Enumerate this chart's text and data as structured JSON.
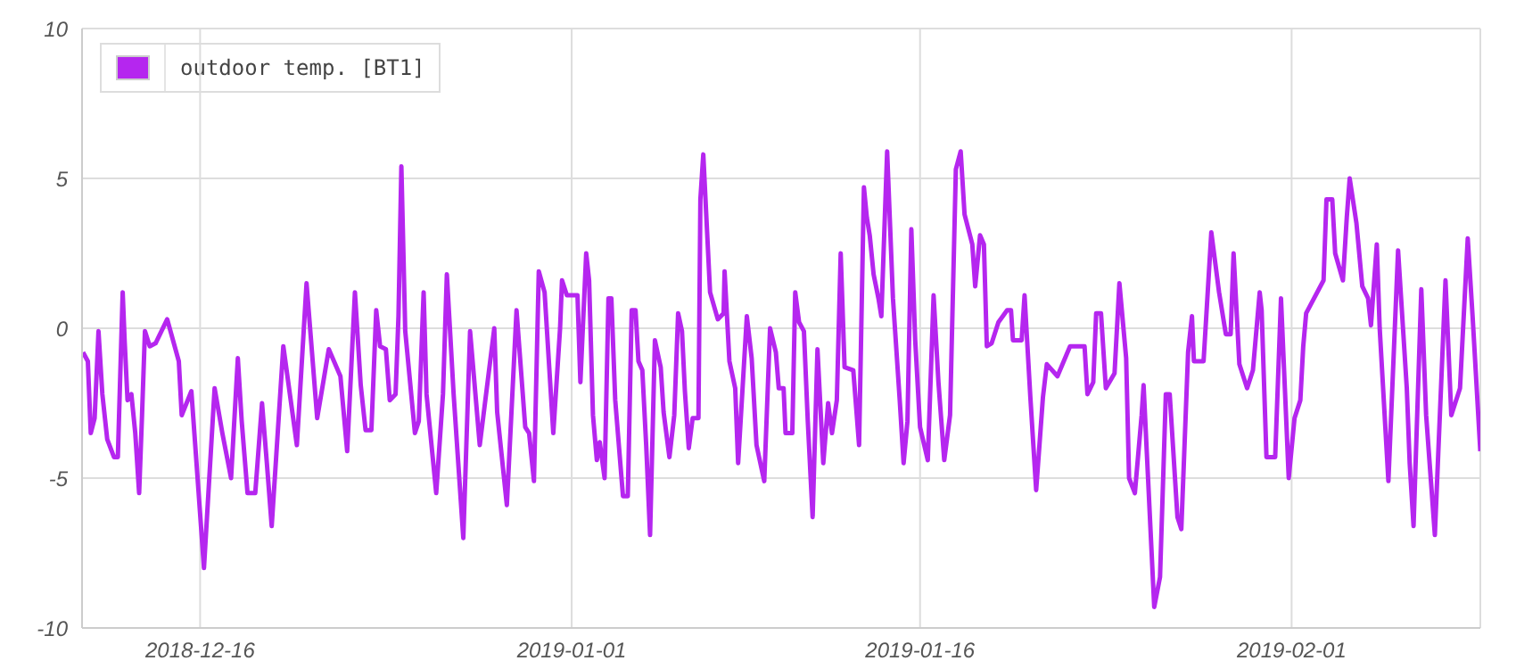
{
  "chart_data": {
    "type": "line",
    "x": [
      "2018-12-10T23:00",
      "2018-12-11T04:00",
      "2018-12-11T07:00",
      "2018-12-11T11:00",
      "2018-12-11T15:00",
      "2018-12-11T19:00",
      "2018-12-12T00:00",
      "2018-12-12T07:00",
      "2018-12-12T11:00",
      "2018-12-12T16:00",
      "2018-12-12T18:00",
      "2018-12-12T21:00",
      "2018-12-13T01:00",
      "2018-12-13T05:00",
      "2018-12-13T09:00",
      "2018-12-13T12:00",
      "2018-12-13T15:00",
      "2018-12-13T20:00",
      "2018-12-14T02:00",
      "2018-12-14T14:00",
      "2018-12-15T02:00",
      "2018-12-15T05:00",
      "2018-12-15T15:00",
      "2018-12-16T04:00",
      "2018-12-16T15:00",
      "2018-12-16T23:00",
      "2018-12-17T08:00",
      "2018-12-17T15:00",
      "2018-12-17T19:00",
      "2018-12-18T01:00",
      "2018-12-18T09:00",
      "2018-12-18T16:00",
      "2018-12-18T21:00",
      "2018-12-19T02:00",
      "2018-12-19T14:00",
      "2018-12-20T04:00",
      "2018-12-20T14:00",
      "2018-12-21T01:00",
      "2018-12-21T13:00",
      "2018-12-22T01:00",
      "2018-12-22T08:00",
      "2018-12-22T16:00",
      "2018-12-22T22:00",
      "2018-12-23T03:00",
      "2018-12-23T09:00",
      "2018-12-23T14:00",
      "2018-12-23T18:00",
      "2018-12-24T00:00",
      "2018-12-24T04:00",
      "2018-12-24T10:00",
      "2018-12-24T13:00",
      "2018-12-24T16:00",
      "2018-12-24T20:00",
      "2018-12-25T06:00",
      "2018-12-25T10:00",
      "2018-12-25T15:00",
      "2018-12-25T18:00",
      "2018-12-26T04:00",
      "2018-12-26T11:00",
      "2018-12-26T15:00",
      "2018-12-26T22:00",
      "2018-12-27T08:00",
      "2018-12-27T15:00",
      "2018-12-28T01:00",
      "2018-12-28T16:00",
      "2018-12-28T19:00",
      "2018-12-29T05:00",
      "2018-12-29T15:00",
      "2018-12-30T00:00",
      "2018-12-30T04:00",
      "2018-12-30T09:00",
      "2018-12-30T14:00",
      "2018-12-30T20:00",
      "2018-12-31T05:00",
      "2018-12-31T12:00",
      "2018-12-31T14:00",
      "2018-12-31T19:00",
      "2019-01-01T06:00",
      "2019-01-01T09:00",
      "2019-01-01T15:00",
      "2019-01-01T18:00",
      "2019-01-01T22:00",
      "2019-01-02T02:00",
      "2019-01-02T05:00",
      "2019-01-02T10:00",
      "2019-01-02T14:00",
      "2019-01-02T17:00",
      "2019-01-02T21:00",
      "2019-01-03T01:00",
      "2019-01-03T05:00",
      "2019-01-03T10:00",
      "2019-01-03T14:00",
      "2019-01-03T18:00",
      "2019-01-03T21:00",
      "2019-01-04T01:00",
      "2019-01-04T05:00",
      "2019-01-04T09:00",
      "2019-01-04T14:00",
      "2019-01-04T20:00",
      "2019-01-04T23:00",
      "2019-01-05T05:00",
      "2019-01-05T10:00",
      "2019-01-05T14:00",
      "2019-01-05T18:00",
      "2019-01-05T21:00",
      "2019-01-06T01:00",
      "2019-01-06T05:00",
      "2019-01-06T11:00",
      "2019-01-06T13:00",
      "2019-01-06T16:00",
      "2019-01-06T23:00",
      "2019-01-07T07:00",
      "2019-01-07T13:00",
      "2019-01-07T14:00",
      "2019-01-07T19:00",
      "2019-01-08T01:00",
      "2019-01-08T04:00",
      "2019-01-08T13:00",
      "2019-01-08T18:00",
      "2019-01-08T23:00",
      "2019-01-09T07:00",
      "2019-01-09T13:00",
      "2019-01-09T19:00",
      "2019-01-09T22:00",
      "2019-01-10T03:00",
      "2019-01-10T05:00",
      "2019-01-10T12:00",
      "2019-01-10T15:00",
      "2019-01-10T19:00",
      "2019-01-11T00:00",
      "2019-01-11T04:00",
      "2019-01-11T09:00",
      "2019-01-11T14:00",
      "2019-01-11T20:00",
      "2019-01-12T01:00",
      "2019-01-12T05:00",
      "2019-01-12T10:00",
      "2019-01-12T14:00",
      "2019-01-12T18:00",
      "2019-01-13T03:00",
      "2019-01-13T09:00",
      "2019-01-13T14:00",
      "2019-01-13T17:00",
      "2019-01-13T20:00",
      "2019-01-14T00:00",
      "2019-01-14T05:00",
      "2019-01-14T08:00",
      "2019-01-14T14:00",
      "2019-01-14T20:00",
      "2019-01-15T03:00",
      "2019-01-15T07:00",
      "2019-01-15T11:00",
      "2019-01-15T15:00",
      "2019-01-15T19:00",
      "2019-01-16T00:00",
      "2019-01-16T08:00",
      "2019-01-16T14:00",
      "2019-01-16T19:00",
      "2019-01-17T01:00",
      "2019-01-17T07:00",
      "2019-01-17T13:00",
      "2019-01-17T18:00",
      "2019-01-17T22:00",
      "2019-01-18T06:00",
      "2019-01-18T09:00",
      "2019-01-18T14:00",
      "2019-01-18T18:00",
      "2019-01-18T21:00",
      "2019-01-19T02:00",
      "2019-01-19T09:00",
      "2019-01-19T18:00",
      "2019-01-19T22:00",
      "2019-01-20T00:00",
      "2019-01-20T09:00",
      "2019-01-20T12:00",
      "2019-01-20T18:00",
      "2019-01-21T00:00",
      "2019-01-21T07:00",
      "2019-01-21T11:00",
      "2019-01-21T22:00",
      "2019-01-22T11:00",
      "2019-01-23T02:00",
      "2019-01-23T05:00",
      "2019-01-23T11:00",
      "2019-01-23T14:00",
      "2019-01-23T19:00",
      "2019-01-24T00:00",
      "2019-01-24T09:00",
      "2019-01-24T14:00",
      "2019-01-24T21:00",
      "2019-01-25T00:00",
      "2019-01-25T06:00",
      "2019-01-25T13:00",
      "2019-01-25T15:00",
      "2019-01-26T02:00",
      "2019-01-26T08:00",
      "2019-01-26T14:00",
      "2019-01-26T18:00",
      "2019-01-27T02:00",
      "2019-01-27T06:00",
      "2019-01-27T13:00",
      "2019-01-27T17:00",
      "2019-01-27T19:00",
      "2019-01-28T05:00",
      "2019-01-28T13:00",
      "2019-01-28T21:00",
      "2019-01-29T04:00",
      "2019-01-29T09:00",
      "2019-01-29T12:00",
      "2019-01-29T18:00",
      "2019-01-30T02:00",
      "2019-01-30T08:00",
      "2019-01-30T15:00",
      "2019-01-30T17:00",
      "2019-01-30T22:00",
      "2019-01-31T07:00",
      "2019-01-31T13:00",
      "2019-01-31T17:00",
      "2019-01-31T21:00",
      "2019-02-01T03:00",
      "2019-02-01T09:00",
      "2019-02-01T12:00",
      "2019-02-01T15:00",
      "2019-02-02T09:00",
      "2019-02-02T12:00",
      "2019-02-02T18:00",
      "2019-02-02T21:00",
      "2019-02-03T05:00",
      "2019-02-03T09:00",
      "2019-02-03T12:00",
      "2019-02-03T19:00",
      "2019-02-04T01:00",
      "2019-02-04T07:00",
      "2019-02-04T10:00",
      "2019-02-04T16:00",
      "2019-02-04T19:00",
      "2019-02-05T04:00",
      "2019-02-05T14:00",
      "2019-02-05T23:00",
      "2019-02-06T02:00",
      "2019-02-06T06:00",
      "2019-02-06T14:00",
      "2019-02-06T19:00",
      "2019-02-07T04:00",
      "2019-02-07T15:00",
      "2019-02-07T21:00",
      "2019-02-08T06:00",
      "2019-02-08T14:00",
      "2019-02-08T19:00",
      "2019-02-09T03:00"
    ],
    "series": [
      {
        "name": "outdoor temp. [BT1]",
        "color": "#b526ef",
        "values": [
          -0.8,
          -1.1,
          -3.5,
          -3.0,
          -0.1,
          -2.2,
          -3.7,
          -4.3,
          -4.3,
          1.2,
          -0.4,
          -2.4,
          -2.2,
          -3.5,
          -5.5,
          -2.9,
          -0.1,
          -0.6,
          -0.5,
          0.3,
          -1.1,
          -2.9,
          -2.1,
          -8.0,
          -2.0,
          -3.5,
          -5.0,
          -1.0,
          -3.1,
          -5.5,
          -5.5,
          -2.5,
          -4.5,
          -6.6,
          -0.6,
          -3.9,
          1.5,
          -3.0,
          -0.7,
          -1.6,
          -4.1,
          1.2,
          -1.9,
          -3.4,
          -3.4,
          0.6,
          -0.6,
          -0.7,
          -2.4,
          -2.2,
          0.4,
          5.4,
          -0.1,
          -3.5,
          -3.1,
          1.2,
          -2.2,
          -5.5,
          -2.2,
          1.8,
          -2.2,
          -7.0,
          -0.1,
          -3.9,
          0,
          -2.8,
          -5.9,
          0.6,
          -3.3,
          -3.5,
          -5.1,
          1.9,
          1.2,
          -3.5,
          0,
          1.6,
          1.1,
          1.1,
          -1.8,
          2.5,
          1.6,
          -2.9,
          -4.4,
          -3.8,
          -5.0,
          1.0,
          1.0,
          -2.4,
          -4.0,
          -5.6,
          -5.6,
          0.6,
          0.6,
          -1.1,
          -1.4,
          -3.9,
          -6.9,
          -0.4,
          -1.3,
          -2.8,
          -4.3,
          -2.9,
          0.5,
          -0.1,
          -2.1,
          -4.0,
          -3.0,
          -3.0,
          4.3,
          5.8,
          1.2,
          0.3,
          0.5,
          1.9,
          -1.1,
          -2.0,
          -4.5,
          0.4,
          -1.0,
          -3.9,
          -5.1,
          0,
          -0.8,
          -2.0,
          -2.0,
          -3.5,
          -3.5,
          1.2,
          0.2,
          -0.1,
          -3.1,
          -6.3,
          -0.7,
          -4.5,
          -2.5,
          -3.5,
          -2.4,
          2.5,
          -1.3,
          -1.4,
          -3.9,
          4.7,
          3.7,
          3.1,
          1.8,
          1.0,
          0.4,
          5.9,
          1.0,
          -2.4,
          -4.5,
          -3.1,
          3.3,
          -0.4,
          -3.3,
          -4.4,
          1.1,
          -1.8,
          -4.4,
          -2.9,
          5.3,
          5.9,
          3.8,
          2.8,
          1.4,
          3.1,
          2.8,
          -0.6,
          -0.5,
          0.2,
          0.6,
          0.6,
          -0.4,
          -0.4,
          1.1,
          -2.3,
          -5.4,
          -2.3,
          -1.2,
          -1.6,
          -0.6,
          -0.6,
          -2.2,
          -1.8,
          0.5,
          0.5,
          -2.0,
          -1.5,
          1.5,
          -1.0,
          -5.0,
          -5.5,
          -2.9,
          -1.9,
          -9.3,
          -8.3,
          -2.2,
          -2.2,
          -6.3,
          -6.7,
          -0.8,
          0.4,
          -1.1,
          -1.1,
          3.2,
          1.2,
          -0.2,
          -0.2,
          2.5,
          -1.2,
          -2.0,
          -1.4,
          1.2,
          0.6,
          -4.3,
          -4.3,
          1.0,
          -2.0,
          -5.0,
          -3.0,
          -2.4,
          -0.6,
          0.5,
          1.6,
          4.3,
          4.3,
          2.5,
          1.6,
          3.7,
          5.0,
          3.5,
          1.4,
          1.0,
          0.1,
          2.8,
          0,
          -5.1,
          2.6,
          -2.0,
          -4.5,
          -6.6,
          1.3,
          -2.9,
          -6.9,
          1.6,
          -2.9,
          -2.0,
          3.0,
          0.4,
          -4.1
        ]
      }
    ],
    "xlim": [
      "2018-12-10T22:00",
      "2019-02-09T03:00"
    ],
    "xticks": [
      "2018-12-16",
      "2019-01-01",
      "2019-01-16",
      "2019-02-01"
    ],
    "ylim": [
      -10,
      10
    ],
    "yticks": [
      -10,
      -5,
      0,
      5,
      10
    ],
    "grid": true,
    "legend": "top left",
    "marker": "none",
    "line_style": "solid"
  }
}
